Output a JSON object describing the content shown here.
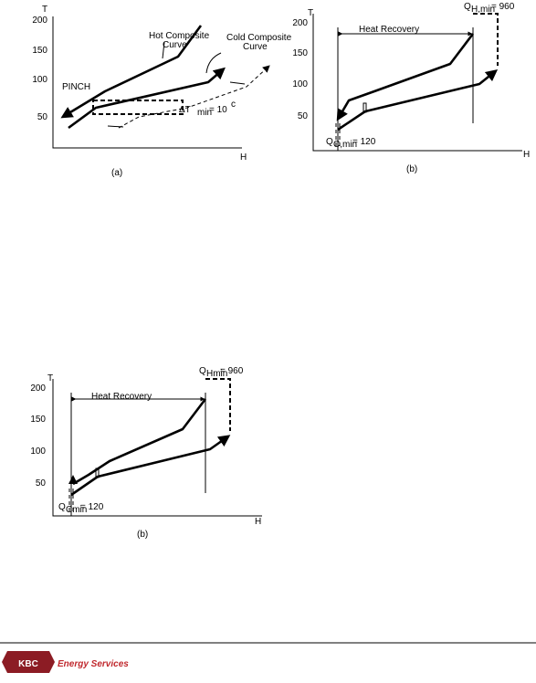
{
  "figures": [
    {
      "label": "(a)",
      "axis_y": "T",
      "axis_x": "H",
      "yticks": [
        200,
        150,
        100,
        50
      ],
      "texts": {
        "hot_curve_1": "Hot Composite",
        "hot_curve_2": "Curve",
        "cold_curve_1": "Cold Composite",
        "cold_curve_2": "Curve",
        "pinch": "PINCH",
        "dtmin_main": "ΔT",
        "dtmin_sub": "min",
        "dtmin_rest": "= 10",
        "dtmin_sup": "c"
      }
    },
    {
      "label": "(b)",
      "axis_y": "T",
      "axis_x": "H",
      "yticks": [
        200,
        150,
        100,
        50
      ],
      "texts": {
        "qh_main": "Q",
        "qh_sub": "H,min",
        "qh_rest": "= 960",
        "heat_recovery": "Heat Recovery",
        "qc_main": "Q",
        "qc_sub": "C,min",
        "qc_rest": "= 120"
      }
    },
    {
      "label": "(b)",
      "axis_y": "T",
      "axis_x": "H",
      "yticks": [
        200,
        150,
        100,
        50
      ],
      "texts": {
        "qh_main": "Q",
        "qh_sub": "Hmin",
        "qh_rest": "= 960",
        "heat_recovery": "Heat Recovery",
        "qc_main": "Q",
        "qc_sub": "Cmin",
        "qc_rest": "= 120"
      }
    }
  ],
  "footer": {
    "logo_mark": "KBC",
    "logo_text": "Energy Services"
  }
}
